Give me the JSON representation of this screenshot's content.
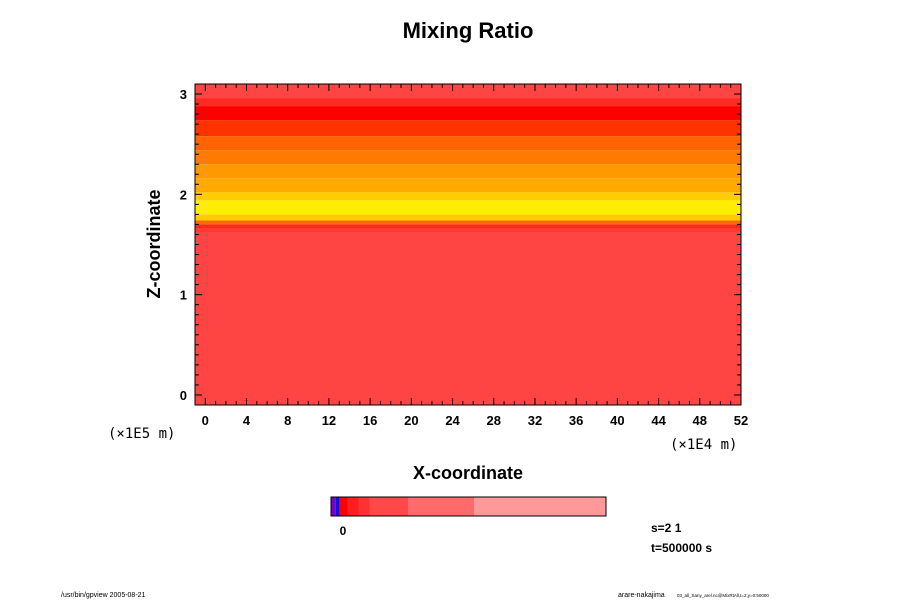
{
  "chart_data": {
    "type": "heatmap",
    "title": "Mixing Ratio",
    "xlabel": "X-coordinate",
    "ylabel": "Z-coordinate",
    "x_unit": "(×1E4 m)",
    "y_unit": "(×1E5 m)",
    "xlim": [
      -1,
      52
    ],
    "ylim": [
      -0.1,
      3.1
    ],
    "x_ticks": [
      "0",
      "4",
      "8",
      "12",
      "16",
      "20",
      "24",
      "28",
      "32",
      "36",
      "40",
      "44",
      "48",
      "52"
    ],
    "y_ticks": [
      "0",
      "1",
      "2",
      "3"
    ],
    "bands": [
      {
        "z0": -0.1,
        "z1": 1.62,
        "color": "#ff4444"
      },
      {
        "z0": 1.62,
        "z1": 1.66,
        "color": "#ff3a32"
      },
      {
        "z0": 1.66,
        "z1": 1.7,
        "color": "#ff2a1c"
      },
      {
        "z0": 1.7,
        "z1": 1.74,
        "color": "#ff6a00"
      },
      {
        "z0": 1.74,
        "z1": 1.8,
        "color": "#ffcc00"
      },
      {
        "z0": 1.8,
        "z1": 1.94,
        "color": "#ffee00"
      },
      {
        "z0": 1.94,
        "z1": 2.02,
        "color": "#ffcc00"
      },
      {
        "z0": 2.02,
        "z1": 2.16,
        "color": "#ffaa00"
      },
      {
        "z0": 2.16,
        "z1": 2.3,
        "color": "#ff9900"
      },
      {
        "z0": 2.3,
        "z1": 2.44,
        "color": "#ff7a00"
      },
      {
        "z0": 2.44,
        "z1": 2.58,
        "color": "#ff6400"
      },
      {
        "z0": 2.58,
        "z1": 2.74,
        "color": "#ff3300"
      },
      {
        "z0": 2.74,
        "z1": 2.88,
        "color": "#ff0000"
      },
      {
        "z0": 2.88,
        "z1": 2.96,
        "color": "#ff2a22"
      },
      {
        "z0": 2.96,
        "z1": 3.1,
        "color": "#ff4444"
      }
    ],
    "colorbar": {
      "zero_label": "0",
      "segments": [
        {
          "w": 0.017,
          "color": "#7a00cc"
        },
        {
          "w": 0.015,
          "color": "#1010e0"
        },
        {
          "w": 0.028,
          "color": "#ff0000"
        },
        {
          "w": 0.04,
          "color": "#ff1e1e"
        },
        {
          "w": 0.04,
          "color": "#ff3232"
        },
        {
          "w": 0.14,
          "color": "#ff4848"
        },
        {
          "w": 0.24,
          "color": "#ff6a6a"
        },
        {
          "w": 0.48,
          "color": "#ff9898"
        }
      ]
    },
    "grid": false,
    "legend": "none"
  },
  "info": {
    "step": "s=2 1",
    "time": "t=500000 s"
  },
  "footer": {
    "left": "/usr/bin/gpview 2005-08-21",
    "right_name": "arare-nakajima",
    "right_file": "03_all_Sany_arel.nc@MixRtAll,t=2,y=0:50000"
  }
}
